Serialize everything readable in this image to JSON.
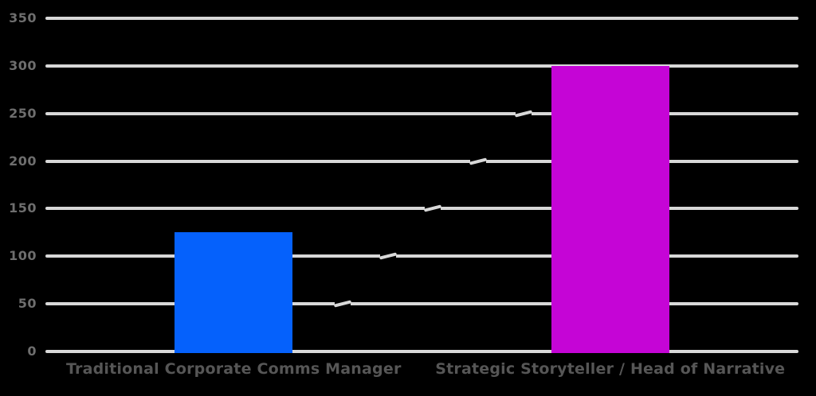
{
  "chart_data": {
    "type": "bar",
    "categories": [
      "Traditional Corporate Comms Manager",
      "Strategic Storyteller / Head of Narrative"
    ],
    "values": [
      125,
      300
    ],
    "bar_colors": [
      "#0561fc",
      "#c505d6"
    ],
    "title": "",
    "xlabel": "",
    "ylabel": "",
    "ylim": [
      0,
      350
    ],
    "yticks": [
      0,
      50,
      100,
      150,
      200,
      250,
      300,
      350
    ],
    "grid": true,
    "legend": false,
    "colors": {
      "background": "#000000",
      "gridline": "#d8d8d8",
      "ytick_text": "#6e6e6e",
      "xtick_text": "#565656"
    }
  }
}
